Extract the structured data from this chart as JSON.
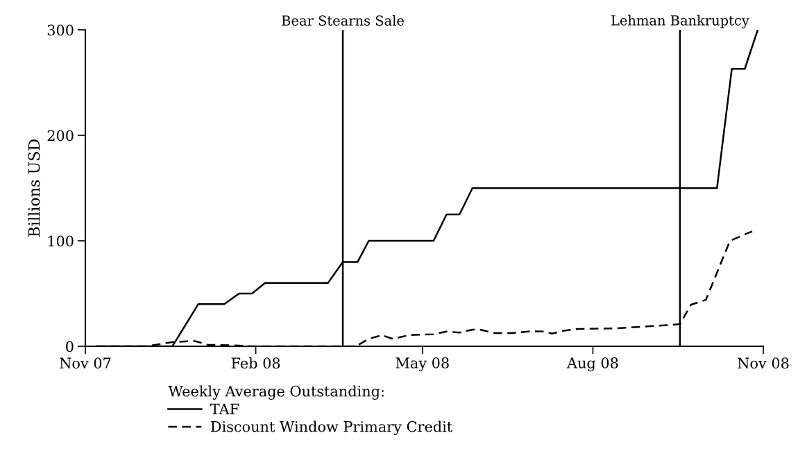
{
  "chart_data": {
    "type": "line",
    "ylabel": "Billions USD",
    "legend_title": "Weekly Average Outstanding:",
    "xlim": [
      "2007-11-01",
      "2008-11-01"
    ],
    "xticks": [
      {
        "value": "2007-11-01",
        "label": "Nov 07"
      },
      {
        "value": "2008-02-01",
        "label": "Feb 08"
      },
      {
        "value": "2008-05-01",
        "label": "May 08"
      },
      {
        "value": "2008-08-01",
        "label": "Aug 08"
      },
      {
        "value": "2008-11-01",
        "label": "Nov 08"
      }
    ],
    "ylim": [
      0,
      300
    ],
    "yticks": [
      0,
      100,
      200,
      300
    ],
    "grid": false,
    "legend": "bottom",
    "marker": "none",
    "series": [
      {
        "name": "TAF",
        "color": "#000000",
        "line_style": "solid",
        "x": [
          "2007-11-07",
          "2007-12-18",
          "2008-01-01",
          "2008-01-15",
          "2008-01-23",
          "2008-01-30",
          "2008-02-06",
          "2008-03-11",
          "2008-03-19",
          "2008-03-27",
          "2008-04-02",
          "2008-05-07",
          "2008-05-14",
          "2008-05-21",
          "2008-05-28",
          "2008-10-07",
          "2008-10-15",
          "2008-10-22",
          "2008-10-29"
        ],
        "values": [
          0,
          0,
          40,
          40,
          50,
          50,
          60,
          60,
          80,
          80,
          100,
          100,
          125,
          125,
          150,
          150,
          263,
          263,
          300
        ]
      },
      {
        "name": "Discount Window Primary Credit",
        "color": "#000000",
        "line_style": "dashed",
        "x": [
          "2007-11-07",
          "2007-12-04",
          "2007-12-18",
          "2007-12-30",
          "2008-01-06",
          "2008-01-26",
          "2008-01-29",
          "2008-03-19",
          "2008-03-26",
          "2008-04-02",
          "2008-04-09",
          "2008-04-15",
          "2008-04-24",
          "2008-05-07",
          "2008-05-14",
          "2008-05-21",
          "2008-05-28",
          "2008-06-01",
          "2008-06-09",
          "2008-06-18",
          "2008-06-29",
          "2008-07-06",
          "2008-07-10",
          "2008-07-16",
          "2008-07-24",
          "2008-08-13",
          "2008-09-13",
          "2008-09-17",
          "2008-09-23",
          "2008-10-01",
          "2008-10-14",
          "2008-10-26"
        ],
        "values": [
          0,
          0,
          4,
          5,
          1.5,
          0.5,
          0,
          0,
          0,
          7,
          10.5,
          7,
          10.7,
          11.4,
          14,
          13,
          15.8,
          15.8,
          12.5,
          12.5,
          14.3,
          14,
          12,
          14.7,
          16.4,
          17,
          20.3,
          21,
          39.5,
          44,
          100,
          109
        ]
      }
    ],
    "ref_lines": [
      {
        "axis": "x",
        "value": "2008-03-19",
        "label": "Bear Stearns Sale",
        "color": "#000000"
      },
      {
        "axis": "x",
        "value": "2008-09-17",
        "label": "Lehman Bankruptcy",
        "color": "#000000"
      }
    ]
  }
}
